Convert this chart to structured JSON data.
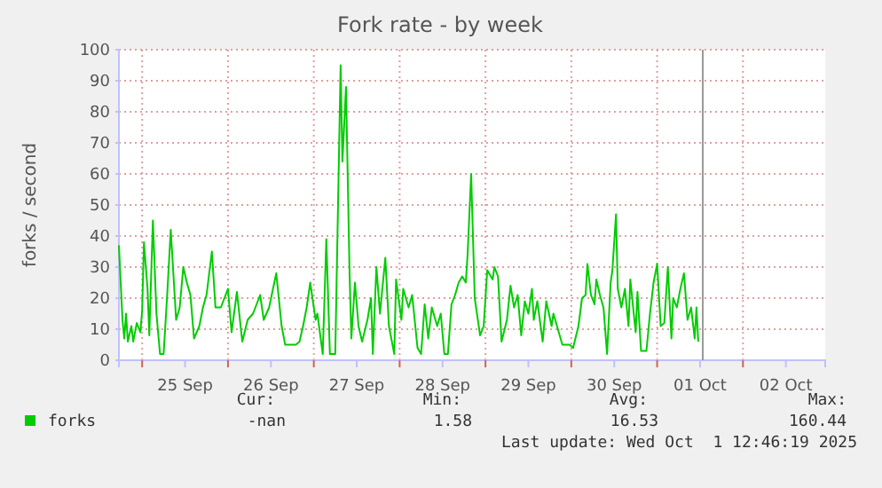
{
  "chart_data": {
    "type": "line",
    "title": "Fork rate - by week",
    "ylabel": "forks / second",
    "xlim": [
      "2025-09-24T17:30",
      "2025-10-02T23:00"
    ],
    "xticks": [
      {
        "value": "2025-09-25T00:00",
        "label": null
      },
      {
        "value": "2025-09-25T12:00",
        "label": "25 Sep"
      },
      {
        "value": "2025-09-26T00:00",
        "label": null
      },
      {
        "value": "2025-09-26T12:00",
        "label": "26 Sep"
      },
      {
        "value": "2025-09-27T00:00",
        "label": null
      },
      {
        "value": "2025-09-27T12:00",
        "label": "27 Sep"
      },
      {
        "value": "2025-09-28T00:00",
        "label": null
      },
      {
        "value": "2025-09-28T12:00",
        "label": "28 Sep"
      },
      {
        "value": "2025-09-29T00:00",
        "label": null
      },
      {
        "value": "2025-09-29T12:00",
        "label": "29 Sep"
      },
      {
        "value": "2025-09-30T00:00",
        "label": null
      },
      {
        "value": "2025-09-30T12:00",
        "label": "30 Sep"
      },
      {
        "value": "2025-10-01T00:00",
        "label": null
      },
      {
        "value": "2025-10-01T12:00",
        "label": "01 Oct"
      },
      {
        "value": "2025-10-02T00:00",
        "label": null
      },
      {
        "value": "2025-10-02T12:00",
        "label": "02 Oct"
      }
    ],
    "ylim": [
      0,
      100
    ],
    "yticks": [
      0,
      10,
      20,
      30,
      40,
      50,
      60,
      70,
      80,
      90,
      100
    ],
    "grid": true,
    "legend": "bottom",
    "marker": "none",
    "line_style": "solid",
    "ref_lines": [
      {
        "axis": "x",
        "value": "2025-10-01T12:46",
        "color": "#999999"
      }
    ],
    "annotations": [
      "Cur:",
      "Min:",
      "Avg:",
      "Max:",
      "-nan",
      "1.58",
      "16.53",
      "160.44",
      "Last update: Wed Oct  1 12:46:19 2025"
    ],
    "series": [
      {
        "name": "forks",
        "color": "#00cc00",
        "x": [
          "2025-09-24T17:30",
          "2025-09-24T18:30",
          "2025-09-24T19:00",
          "2025-09-24T19:30",
          "2025-09-24T20:00",
          "2025-09-24T21:00",
          "2025-09-24T21:30",
          "2025-09-24T22:30",
          "2025-09-24T23:30",
          "2025-09-25T00:00",
          "2025-09-25T00:30",
          "2025-09-25T01:30",
          "2025-09-25T02:00",
          "2025-09-25T03:00",
          "2025-09-25T04:00",
          "2025-09-25T05:00",
          "2025-09-25T06:00",
          "2025-09-25T07:00",
          "2025-09-25T08:00",
          "2025-09-25T09:30",
          "2025-09-25T10:30",
          "2025-09-25T11:30",
          "2025-09-25T12:30",
          "2025-09-25T13:30",
          "2025-09-25T14:30",
          "2025-09-25T16:00",
          "2025-09-25T17:00",
          "2025-09-25T18:00",
          "2025-09-25T19:30",
          "2025-09-25T20:30",
          "2025-09-25T22:00",
          "2025-09-26T00:00",
          "2025-09-26T01:00",
          "2025-09-26T02:30",
          "2025-09-26T04:00",
          "2025-09-26T05:30",
          "2025-09-26T07:00",
          "2025-09-26T09:00",
          "2025-09-26T10:00",
          "2025-09-26T11:30",
          "2025-09-26T13:30",
          "2025-09-26T15:00",
          "2025-09-26T16:00",
          "2025-09-26T19:00",
          "2025-09-26T20:00",
          "2025-09-26T21:00",
          "2025-09-26T22:00",
          "2025-09-26T23:00",
          "2025-09-27T00:30",
          "2025-09-27T01:00",
          "2025-09-27T02:30",
          "2025-09-27T03:30",
          "2025-09-27T04:30",
          "2025-09-27T06:00",
          "2025-09-27T07:30",
          "2025-09-27T08:00",
          "2025-09-27T09:00",
          "2025-09-27T10:00",
          "2025-09-27T10:30",
          "2025-09-27T11:30",
          "2025-09-27T12:30",
          "2025-09-27T13:30",
          "2025-09-27T15:00",
          "2025-09-27T16:00",
          "2025-09-27T16:30",
          "2025-09-27T17:30",
          "2025-09-27T18:30",
          "2025-09-27T20:00",
          "2025-09-27T21:00",
          "2025-09-27T22:30",
          "2025-09-27T23:00",
          "2025-09-28T00:30",
          "2025-09-28T01:00",
          "2025-09-28T02:30",
          "2025-09-28T03:30",
          "2025-09-28T05:00",
          "2025-09-28T06:00",
          "2025-09-28T07:00",
          "2025-09-28T08:00",
          "2025-09-28T09:00",
          "2025-09-28T10:30",
          "2025-09-28T11:30",
          "2025-09-28T12:30",
          "2025-09-28T13:30",
          "2025-09-28T14:30",
          "2025-09-28T15:30",
          "2025-09-28T16:30",
          "2025-09-28T17:30",
          "2025-09-28T18:30",
          "2025-09-28T19:00",
          "2025-09-28T20:00",
          "2025-09-28T21:00",
          "2025-09-28T22:30",
          "2025-09-28T23:30",
          "2025-09-29T00:30",
          "2025-09-29T02:00",
          "2025-09-29T02:30",
          "2025-09-29T03:30",
          "2025-09-29T04:30",
          "2025-09-29T06:00",
          "2025-09-29T07:00",
          "2025-09-29T08:00",
          "2025-09-29T09:00",
          "2025-09-29T10:00",
          "2025-09-29T11:00",
          "2025-09-29T12:00",
          "2025-09-29T13:00",
          "2025-09-29T13:30",
          "2025-09-29T14:30",
          "2025-09-29T16:00",
          "2025-09-29T17:00",
          "2025-09-29T18:30",
          "2025-09-29T19:00",
          "2025-09-29T20:00",
          "2025-09-29T21:30",
          "2025-09-29T23:30",
          "2025-09-30T00:30",
          "2025-09-30T02:00",
          "2025-09-30T03:00",
          "2025-09-30T04:00",
          "2025-09-30T04:30",
          "2025-09-30T05:30",
          "2025-09-30T06:30",
          "2025-09-30T07:00",
          "2025-09-30T08:00",
          "2025-09-30T09:00",
          "2025-09-30T10:00",
          "2025-09-30T11:00",
          "2025-09-30T11:30",
          "2025-09-30T12:30",
          "2025-09-30T13:00",
          "2025-09-30T14:00",
          "2025-09-30T15:00",
          "2025-09-30T16:00",
          "2025-09-30T16:30",
          "2025-09-30T18:00",
          "2025-09-30T18:30",
          "2025-09-30T19:30",
          "2025-09-30T21:00",
          "2025-09-30T22:00",
          "2025-09-30T23:00",
          "2025-10-01T00:00",
          "2025-10-01T01:00",
          "2025-10-01T02:00",
          "2025-10-01T03:00",
          "2025-10-01T04:00",
          "2025-10-01T04:30",
          "2025-10-01T05:30",
          "2025-10-01T06:30",
          "2025-10-01T07:30",
          "2025-10-01T08:30",
          "2025-10-01T09:30",
          "2025-10-01T10:30",
          "2025-10-01T11:00",
          "2025-10-01T11:30"
        ],
        "values": [
          37,
          13,
          7,
          15,
          6,
          11,
          6,
          12,
          9,
          16,
          38,
          23,
          8,
          45,
          15,
          2,
          2,
          21,
          42,
          13,
          17,
          30,
          25,
          21,
          7,
          11,
          17,
          21,
          35,
          17,
          17,
          23,
          9,
          22,
          6,
          13,
          15,
          21,
          13,
          17,
          28,
          11,
          5,
          5,
          6,
          11,
          17,
          25,
          13,
          15,
          2,
          39,
          2,
          2,
          95,
          64,
          88,
          28,
          7,
          25,
          11,
          6,
          13,
          20,
          2,
          30,
          15,
          33,
          11,
          2,
          26,
          13,
          23,
          17,
          21,
          4,
          2,
          18,
          7,
          17,
          11,
          15,
          2,
          2,
          18,
          21,
          25,
          27,
          25,
          34,
          60,
          20,
          8,
          11,
          29,
          26,
          30,
          27,
          6,
          13,
          24,
          17,
          21,
          8,
          19,
          15,
          23,
          13,
          19,
          6,
          19,
          11,
          15,
          11,
          5,
          5,
          4,
          11,
          20,
          21,
          31,
          21,
          18,
          26,
          21,
          17,
          2,
          25,
          29,
          47,
          23,
          17,
          23,
          11,
          26,
          9,
          22,
          3,
          3,
          15,
          25,
          31,
          11,
          12,
          30,
          7,
          20,
          17,
          23,
          28,
          13,
          17,
          7,
          17,
          6
        ]
      }
    ]
  }
}
